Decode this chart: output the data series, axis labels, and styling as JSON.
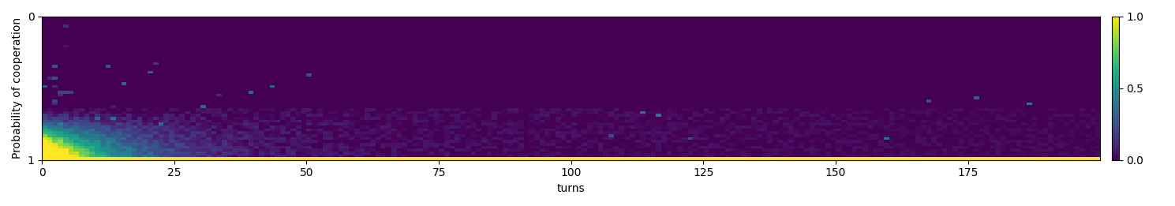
{
  "title": "",
  "xlabel": "turns",
  "ylabel": "Probability of cooperation",
  "cmap": "viridis",
  "n_turns": 200,
  "n_prob": 50,
  "colorbar_ticks": [
    0.0,
    0.5,
    1.0
  ],
  "figsize": [
    14.89,
    2.61
  ],
  "dpi": 100
}
